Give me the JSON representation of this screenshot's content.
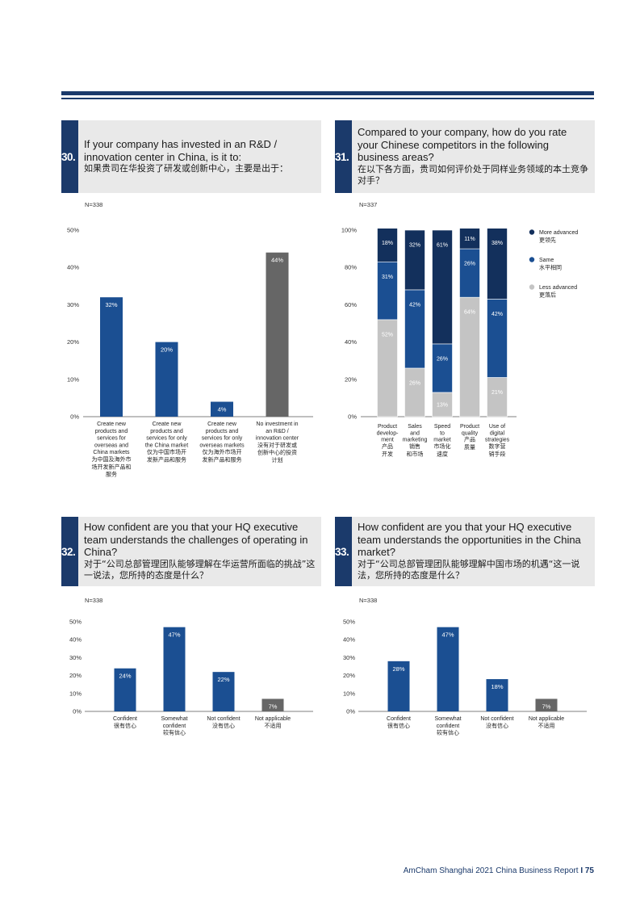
{
  "q30": {
    "number": "30.",
    "title_en": "If your company has invested in an R&D / innovation center in China, is it to:",
    "title_zh": "如果贵司在华投资了研发或创新中心，主要是出于：",
    "n": "N=338",
    "chart_data": {
      "type": "bar",
      "yticks": [
        "50%",
        "40%",
        "30%",
        "20%",
        "10%",
        "0%"
      ],
      "ylim": [
        0,
        50
      ],
      "bars": [
        {
          "value": 32,
          "label": "32%",
          "color": "#1b4f92",
          "cat_en": [
            "Create new",
            "products and",
            "services for",
            "overseas and",
            "China markets"
          ],
          "cat_zh": [
            "为中国及海外市",
            "场开发新产品和",
            "服务"
          ]
        },
        {
          "value": 20,
          "label": "20%",
          "color": "#1b4f92",
          "cat_en": [
            "Create new",
            "products and",
            "services for only",
            "the China market"
          ],
          "cat_zh": [
            "仅为中国市场开",
            "发新产品和服务"
          ]
        },
        {
          "value": 4,
          "label": "4%",
          "color": "#1b4f92",
          "cat_en": [
            "Create new",
            "products and",
            "services for only",
            "overseas markets"
          ],
          "cat_zh": [
            "仅为海外市场开",
            "发新产品和服务"
          ]
        },
        {
          "value": 44,
          "label": "44%",
          "color": "#666666",
          "cat_en": [
            "No investment in",
            "an R&D /",
            "innovation center"
          ],
          "cat_zh": [
            "没有对于研发或",
            "创新中心的投资",
            "计划"
          ]
        }
      ]
    }
  },
  "q31": {
    "number": "31.",
    "title_en": "Compared to your company, how do you rate your Chinese competitors in the following business areas?",
    "title_zh": "在以下各方面，贵司如何评价处于同样业务领域的本土竞争对手？",
    "n": "N=337",
    "chart_data": {
      "type": "bar",
      "stacked": true,
      "yticks": [
        "100%",
        "80%",
        "60%",
        "40%",
        "20%",
        "0%"
      ],
      "ylim": [
        0,
        100
      ],
      "series": [
        {
          "name": "Less advanced",
          "name_zh": "更落后",
          "color": "#c4c4c4",
          "values": [
            52,
            26,
            13,
            64,
            21
          ]
        },
        {
          "name": "Same",
          "name_zh": "水平相同",
          "color": "#1b4f92",
          "values": [
            31,
            42,
            26,
            26,
            42
          ]
        },
        {
          "name": "More advanced",
          "name_zh": "更领先",
          "color": "#13305c",
          "values": [
            18,
            32,
            61,
            11,
            38
          ]
        }
      ],
      "categories": [
        {
          "en": [
            "Product",
            "develop-",
            "ment"
          ],
          "zh": [
            "产品",
            "开发"
          ]
        },
        {
          "en": [
            "Sales",
            "and",
            "marketing"
          ],
          "zh": [
            "销售",
            "和市场"
          ]
        },
        {
          "en": [
            "Speed",
            "to",
            "market"
          ],
          "zh": [
            "市场化",
            "速度"
          ]
        },
        {
          "en": [
            "Product",
            "quality"
          ],
          "zh": [
            "产品",
            "质量"
          ]
        },
        {
          "en": [
            "Use of",
            "digital",
            "strategies"
          ],
          "zh": [
            "数字营",
            "销手段"
          ]
        }
      ],
      "legend_order": [
        2,
        1,
        0
      ]
    }
  },
  "q32": {
    "number": "32.",
    "title_en": "How confident are you that your HQ executive team understands the challenges of operating in China?",
    "title_zh": "对于“公司总部管理团队能够理解在华运营所面临的挑战”这一说法，您所持的态度是什么？",
    "n": "N=338",
    "chart_data": {
      "type": "bar",
      "yticks": [
        "50%",
        "40%",
        "30%",
        "20%",
        "10%",
        "0%"
      ],
      "ylim": [
        0,
        50
      ],
      "bars": [
        {
          "value": 24,
          "label": "24%",
          "color": "#1b4f92",
          "cat_en": [
            "Confident"
          ],
          "cat_zh": [
            "很有信心"
          ]
        },
        {
          "value": 47,
          "label": "47%",
          "color": "#1b4f92",
          "cat_en": [
            "Somewhat",
            "confident"
          ],
          "cat_zh": [
            "较有信心"
          ]
        },
        {
          "value": 22,
          "label": "22%",
          "color": "#1b4f92",
          "cat_en": [
            "Not confident"
          ],
          "cat_zh": [
            "没有信心"
          ]
        },
        {
          "value": 7,
          "label": "7%",
          "color": "#666666",
          "cat_en": [
            "Not applicable"
          ],
          "cat_zh": [
            "不适用"
          ]
        }
      ]
    }
  },
  "q33": {
    "number": "33.",
    "title_en": "How confident are you that your HQ executive team understands the opportunities in the China market?",
    "title_zh": "对于“公司总部管理团队能够理解中国市场的机遇“这一说法，您所持的态度是什么？",
    "n": "N=338",
    "chart_data": {
      "type": "bar",
      "yticks": [
        "50%",
        "40%",
        "30%",
        "20%",
        "10%",
        "0%"
      ],
      "ylim": [
        0,
        50
      ],
      "bars": [
        {
          "value": 28,
          "label": "28%",
          "color": "#1b4f92",
          "cat_en": [
            "Confident"
          ],
          "cat_zh": [
            "很有信心"
          ]
        },
        {
          "value": 47,
          "label": "47%",
          "color": "#1b4f92",
          "cat_en": [
            "Somewhat",
            "confident"
          ],
          "cat_zh": [
            "较有信心"
          ]
        },
        {
          "value": 18,
          "label": "18%",
          "color": "#1b4f92",
          "cat_en": [
            "Not confident"
          ],
          "cat_zh": [
            "没有信心"
          ]
        },
        {
          "value": 7,
          "label": "7%",
          "color": "#666666",
          "cat_en": [
            "Not applicable"
          ],
          "cat_zh": [
            "不适用"
          ]
        }
      ]
    }
  },
  "footer": {
    "report": "AmCham Shanghai 2021 China Business Report",
    "separator": "I",
    "page": "75"
  }
}
